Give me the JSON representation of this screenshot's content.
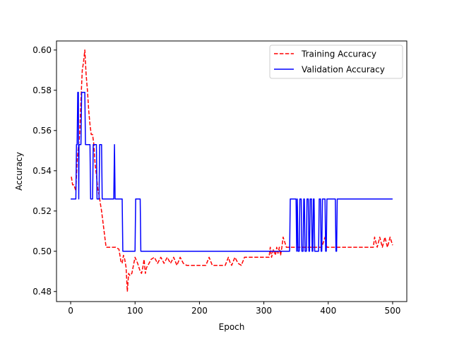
{
  "chart_data": {
    "type": "line",
    "xlabel": "Epoch",
    "ylabel": "Accuracy",
    "xlim": [
      -22,
      522
    ],
    "ylim": [
      0.475,
      0.6045
    ],
    "xticks": [
      0,
      100,
      200,
      300,
      400,
      500
    ],
    "yticks": [
      0.48,
      0.5,
      0.52,
      0.54,
      0.56,
      0.58,
      0.6
    ],
    "ytick_labels": [
      "0.48",
      "0.50",
      "0.52",
      "0.54",
      "0.56",
      "0.58",
      "0.60"
    ],
    "legend_position": "upper-right",
    "grid": false,
    "series": [
      {
        "name": "Training Accuracy",
        "color": "#ff0000",
        "style": "dashed",
        "x": [
          1,
          3,
          5,
          8,
          10,
          12,
          14,
          16,
          18,
          20,
          22,
          24,
          26,
          28,
          30,
          32,
          34,
          36,
          38,
          40,
          42,
          44,
          46,
          48,
          50,
          55,
          60,
          65,
          70,
          75,
          78,
          80,
          82,
          84,
          86,
          88,
          90,
          92,
          95,
          100,
          104,
          108,
          110,
          112,
          114,
          116,
          118,
          120,
          125,
          130,
          135,
          140,
          145,
          150,
          155,
          160,
          165,
          170,
          175,
          180,
          190,
          200,
          210,
          215,
          220,
          230,
          240,
          245,
          248,
          250,
          255,
          260,
          265,
          270,
          280,
          290,
          300,
          308,
          310,
          312,
          315,
          318,
          320,
          322,
          324,
          326,
          328,
          330,
          335,
          340,
          350,
          360,
          370,
          380,
          390,
          395,
          398,
          400,
          410,
          420,
          430,
          440,
          450,
          460,
          470,
          472,
          476,
          480,
          484,
          488,
          492,
          496,
          500
        ],
        "values": [
          0.537,
          0.533,
          0.533,
          0.53,
          0.545,
          0.552,
          0.558,
          0.575,
          0.59,
          0.594,
          0.6,
          0.588,
          0.58,
          0.57,
          0.563,
          0.558,
          0.558,
          0.553,
          0.543,
          0.538,
          0.531,
          0.528,
          0.524,
          0.52,
          0.515,
          0.502,
          0.502,
          0.502,
          0.502,
          0.501,
          0.495,
          0.494,
          0.498,
          0.496,
          0.492,
          0.48,
          0.489,
          0.488,
          0.489,
          0.497,
          0.494,
          0.49,
          0.489,
          0.492,
          0.496,
          0.489,
          0.492,
          0.493,
          0.496,
          0.497,
          0.494,
          0.497,
          0.494,
          0.497,
          0.494,
          0.497,
          0.493,
          0.497,
          0.494,
          0.493,
          0.493,
          0.493,
          0.493,
          0.497,
          0.493,
          0.493,
          0.493,
          0.497,
          0.494,
          0.493,
          0.497,
          0.494,
          0.493,
          0.497,
          0.497,
          0.497,
          0.497,
          0.497,
          0.502,
          0.497,
          0.501,
          0.498,
          0.502,
          0.499,
          0.502,
          0.498,
          0.502,
          0.507,
          0.502,
          0.502,
          0.502,
          0.502,
          0.502,
          0.502,
          0.502,
          0.507,
          0.502,
          0.502,
          0.502,
          0.502,
          0.502,
          0.502,
          0.502,
          0.502,
          0.502,
          0.507,
          0.502,
          0.507,
          0.502,
          0.507,
          0.502,
          0.507,
          0.503
        ]
      },
      {
        "name": "Validation Accuracy",
        "color": "#0000ff",
        "style": "solid",
        "x": [
          0,
          8,
          9,
          10,
          11,
          12,
          12.5,
          13,
          14,
          16,
          17,
          22,
          23,
          30,
          31,
          34,
          35,
          40,
          41,
          44,
          45,
          48,
          49,
          50,
          51,
          67,
          68,
          69,
          80,
          81,
          100,
          101,
          108,
          109,
          340,
          341,
          342,
          350,
          351,
          352,
          353,
          355,
          356,
          358,
          359,
          361,
          362,
          363,
          364,
          366,
          367,
          369,
          370,
          371,
          372,
          374,
          375,
          376,
          377,
          378,
          379,
          385,
          386,
          388,
          389,
          390,
          391,
          395,
          396,
          397,
          398,
          399,
          400,
          411,
          412,
          413,
          414,
          415,
          416,
          500
        ],
        "values": [
          0.526,
          0.526,
          0.553,
          0.553,
          0.579,
          0.579,
          0.526,
          0.553,
          0.553,
          0.553,
          0.579,
          0.579,
          0.553,
          0.553,
          0.526,
          0.526,
          0.553,
          0.553,
          0.526,
          0.526,
          0.553,
          0.553,
          0.526,
          0.526,
          0.526,
          0.526,
          0.553,
          0.526,
          0.526,
          0.5,
          0.5,
          0.526,
          0.526,
          0.5,
          0.5,
          0.526,
          0.526,
          0.526,
          0.5,
          0.526,
          0.5,
          0.5,
          0.526,
          0.526,
          0.5,
          0.5,
          0.526,
          0.526,
          0.5,
          0.5,
          0.526,
          0.526,
          0.5,
          0.5,
          0.526,
          0.526,
          0.5,
          0.5,
          0.526,
          0.526,
          0.5,
          0.5,
          0.526,
          0.526,
          0.5,
          0.5,
          0.526,
          0.526,
          0.5,
          0.5,
          0.526,
          0.526,
          0.526,
          0.526,
          0.5,
          0.5,
          0.526,
          0.526,
          0.526,
          0.526
        ]
      }
    ]
  }
}
